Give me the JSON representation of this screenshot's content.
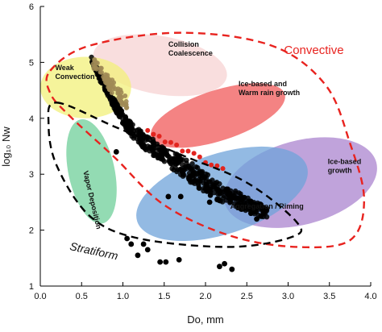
{
  "chart_data": {
    "type": "scatter",
    "xlabel": "Do, mm",
    "ylabel": "log₁₀ Nw",
    "xlim": [
      0.0,
      4.0
    ],
    "ylim": [
      1,
      6
    ],
    "x_ticks": [
      "0.0",
      "0.5",
      "1.0",
      "1.5",
      "2.0",
      "2.5",
      "3.0",
      "3.5",
      "4.0"
    ],
    "y_ticks": [
      "1",
      "2",
      "3",
      "4",
      "5",
      "6"
    ],
    "grid": false,
    "legend": "none",
    "regions": [
      {
        "label": "Collision\nCoalescence",
        "color": "#f7d3d3",
        "cx": 1.45,
        "cy": 4.95,
        "rx": 0.82,
        "ry": 0.52,
        "angle": 10
      },
      {
        "label": "Weak\nConvection",
        "color": "#f2f07a",
        "cx": 0.55,
        "cy": 4.55,
        "rx": 0.55,
        "ry": 0.55,
        "angle": 0
      },
      {
        "label": "Ice-based and\nWarm rain growth",
        "color": "#f05a5a",
        "cx": 2.15,
        "cy": 4.05,
        "rx": 0.85,
        "ry": 0.45,
        "angle": -18
      },
      {
        "label": "Ice-based\ngrowth",
        "color": "#ab84cf",
        "cx": 3.15,
        "cy": 2.85,
        "rx": 0.95,
        "ry": 0.75,
        "angle": -15
      },
      {
        "label": "Aggregation / Riming",
        "color": "#6fa3d9",
        "cx": 2.2,
        "cy": 2.65,
        "rx": 1.08,
        "ry": 0.72,
        "angle": -18
      },
      {
        "label": "Vapor Deposition",
        "color": "#6fcf9a",
        "cx": 0.62,
        "cy": 3.05,
        "rx": 0.28,
        "ry": 0.95,
        "angle": -12
      }
    ],
    "region_labels": [
      {
        "lines": [
          "Collision",
          "Coalescence"
        ],
        "x": 1.55,
        "y": 5.28
      },
      {
        "lines": [
          "Weak",
          "Convection"
        ],
        "x": 0.18,
        "y": 4.86
      },
      {
        "lines": [
          "Ice-based and",
          "Warm rain growth"
        ],
        "x": 2.4,
        "y": 4.57
      },
      {
        "lines": [
          "Ice-based",
          "growth"
        ],
        "x": 3.48,
        "y": 3.18
      },
      {
        "lines": [
          "Aggregation / Riming"
        ],
        "x": 2.3,
        "y": 2.38
      },
      {
        "lines": [
          "Vapor Deposition"
        ],
        "x": 0.52,
        "y": 3.05,
        "rotate": 77
      }
    ],
    "convective_boundary": [
      [
        0.12,
        4.85
      ],
      [
        0.6,
        5.3
      ],
      [
        1.7,
        5.53
      ],
      [
        2.8,
        5.3
      ],
      [
        3.45,
        4.6
      ],
      [
        3.75,
        3.55
      ],
      [
        3.92,
        2.55
      ],
      [
        3.75,
        1.82
      ],
      [
        3.1,
        1.7
      ],
      [
        2.3,
        1.9
      ],
      [
        1.5,
        2.45
      ],
      [
        0.9,
        3.3
      ],
      [
        0.35,
        4.05
      ],
      [
        0.12,
        4.45
      ]
    ],
    "stratiform_boundary": [
      [
        0.2,
        4.28
      ],
      [
        0.9,
        3.85
      ],
      [
        1.7,
        3.35
      ],
      [
        2.5,
        2.85
      ],
      [
        3.1,
        2.15
      ],
      [
        3.05,
        1.88
      ],
      [
        2.3,
        1.7
      ],
      [
        1.2,
        1.85
      ],
      [
        0.6,
        2.25
      ],
      [
        0.2,
        3.15
      ],
      [
        0.1,
        3.9
      ]
    ],
    "convective_label": "Convective",
    "convective_label_pos": [
      2.95,
      5.15
    ],
    "stratiform_label": "Stratiform",
    "stratiform_label_pos": [
      0.35,
      1.65
    ],
    "series": [
      {
        "points": [
          [
            0.92,
            3.4
          ],
          [
            1.05,
            1.85
          ],
          [
            1.1,
            1.75
          ],
          [
            1.25,
            1.75
          ],
          [
            1.3,
            1.65
          ],
          [
            1.45,
            1.43
          ],
          [
            1.52,
            1.43
          ],
          [
            1.68,
            1.47
          ],
          [
            2.17,
            1.35
          ],
          [
            2.23,
            1.4
          ],
          [
            2.32,
            1.3
          ],
          [
            1.18,
            1.55
          ],
          [
            2.05,
            2.5
          ],
          [
            2.4,
            2.45
          ],
          [
            2.55,
            2.3
          ],
          [
            2.62,
            2.2
          ],
          [
            1.55,
            2.6
          ],
          [
            1.7,
            2.6
          ]
        ],
        "color": "#000000"
      }
    ]
  }
}
